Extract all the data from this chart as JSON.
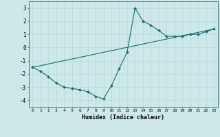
{
  "xlabel": "Humidex (Indice chaleur)",
  "bg_color": "#cce8e8",
  "line_color": "#1a6b6b",
  "grid_color": "#b8d8d8",
  "xlim": [
    -0.5,
    23.5
  ],
  "ylim": [
    -4.5,
    3.5
  ],
  "xticks": [
    0,
    1,
    2,
    3,
    4,
    5,
    6,
    7,
    8,
    9,
    10,
    11,
    12,
    13,
    14,
    15,
    16,
    17,
    18,
    19,
    20,
    21,
    22,
    23
  ],
  "yticks": [
    -4,
    -3,
    -2,
    -1,
    0,
    1,
    2,
    3
  ],
  "series1_x": [
    0,
    1,
    2,
    3,
    4,
    5,
    6,
    7,
    8,
    9,
    10,
    11,
    12,
    13,
    14,
    15,
    16,
    17,
    18,
    19,
    20,
    21,
    22,
    23
  ],
  "series1_y": [
    -1.5,
    -1.8,
    -2.2,
    -2.7,
    -3.0,
    -3.1,
    -3.2,
    -3.35,
    -3.7,
    -3.9,
    -2.9,
    -1.6,
    -0.35,
    3.0,
    2.0,
    1.7,
    1.3,
    0.85,
    0.85,
    0.85,
    1.0,
    1.0,
    1.2,
    1.4
  ],
  "series2_x": [
    0,
    23
  ],
  "series2_y": [
    -1.5,
    1.4
  ]
}
